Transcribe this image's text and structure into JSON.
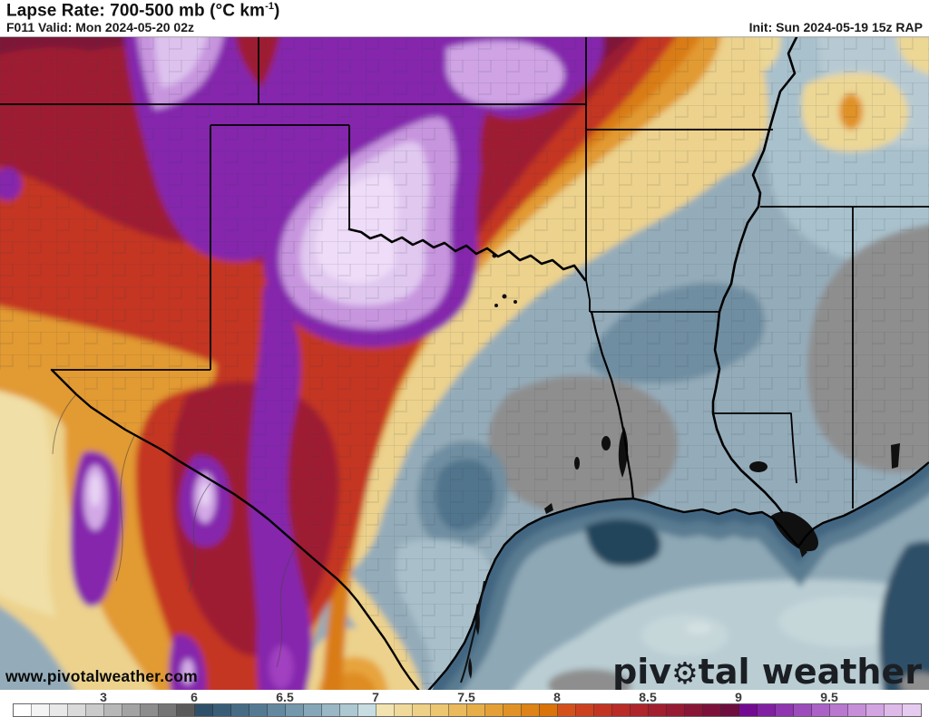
{
  "header": {
    "title_prefix": "Lapse Rate: 700-500 mb (°C km",
    "title_sup": "-1",
    "title_suffix": ")",
    "valid_line": "F011 Valid: Mon 2024-05-20 02z",
    "init_line": "Init: Sun 2024-05-19 15z RAP"
  },
  "map": {
    "watermark": "www.pivotalweather.com",
    "logo": {
      "pre": "piv",
      "gear": "⚙",
      "post": "tal weather"
    }
  },
  "colorbar": {
    "labels": [
      {
        "text": "3",
        "boundary": 5
      },
      {
        "text": "6",
        "boundary": 10
      },
      {
        "text": "6.5",
        "boundary": 15
      },
      {
        "text": "7",
        "boundary": 20
      },
      {
        "text": "7.5",
        "boundary": 25
      },
      {
        "text": "8",
        "boundary": 30
      },
      {
        "text": "8.5",
        "boundary": 35
      },
      {
        "text": "9",
        "boundary": 40
      },
      {
        "text": "9.5",
        "boundary": 45
      }
    ],
    "cells": [
      "#ffffff",
      "#f4f4f4",
      "#e8e8e8",
      "#dadada",
      "#cacaca",
      "#b7b7b7",
      "#a3a3a3",
      "#8d8d8d",
      "#757575",
      "#5a5a5a",
      "#2f5068",
      "#3a5d77",
      "#466b85",
      "#547a93",
      "#6389a0",
      "#7498ac",
      "#86a7b8",
      "#99b7c5",
      "#aec8d2",
      "#c8dde2",
      "#f2e3b0",
      "#f0da9b",
      "#eed086",
      "#ecc671",
      "#eaba5c",
      "#e7ae48",
      "#e4a036",
      "#e19226",
      "#dd8317",
      "#d9730a",
      "#d4511d",
      "#cc4220",
      "#c33523",
      "#b92c27",
      "#ae252b",
      "#a21f2f",
      "#971b33",
      "#8a1637",
      "#7c123b",
      "#6d0e3f",
      "#730b92",
      "#8120a3",
      "#8f36b0",
      "#9d4cbc",
      "#ab62c7",
      "#b978d0",
      "#c68ed9",
      "#d2a4e1",
      "#debae9",
      "#e6cbf0"
    ]
  }
}
